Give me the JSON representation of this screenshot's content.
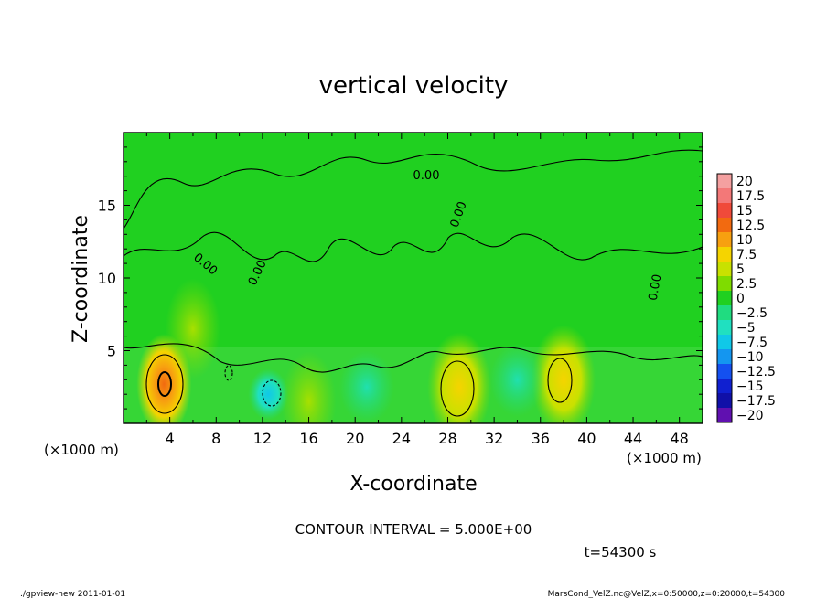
{
  "chart_data": {
    "type": "heatmap",
    "title": "vertical velocity",
    "xlabel": "X-coordinate",
    "ylabel": "Z-coordinate",
    "x_unit_left": "(×1000 m)",
    "x_unit_right": "(×1000 m)",
    "xlim": [
      0,
      50
    ],
    "ylim": [
      0,
      20
    ],
    "xticks": [
      4,
      8,
      12,
      16,
      20,
      24,
      28,
      32,
      36,
      40,
      44,
      48
    ],
    "yticks": [
      5,
      10,
      15
    ],
    "colorbar": {
      "levels": [
        20,
        17.5,
        15,
        12.5,
        10,
        7.5,
        5,
        2.5,
        0,
        -2.5,
        -5,
        -7.5,
        -10,
        -12.5,
        -15,
        -17.5,
        -20
      ],
      "level_labels": [
        "20",
        "17.5",
        "15",
        "12.5",
        "10",
        "7.5",
        "5",
        "2.5",
        "0",
        "−2.5",
        "−5",
        "−7.5",
        "−10",
        "−12.5",
        "−15",
        "−17.5",
        "−20"
      ],
      "colors": [
        "#f4a0a0",
        "#f37878",
        "#f04a3a",
        "#f26a10",
        "#f7a010",
        "#f5d400",
        "#c8e100",
        "#7fdc00",
        "#20d020",
        "#20dc80",
        "#20e0c0",
        "#10c8e8",
        "#1496f0",
        "#1450f0",
        "#1020d0",
        "#1010a8",
        "#6010b0"
      ]
    },
    "contour_labels": [
      "0.00",
      "0.00",
      "0.00",
      "0.00",
      "0.00"
    ],
    "features": [
      {
        "x": 3.5,
        "z": 2.7,
        "value": 12
      },
      {
        "x": 6.0,
        "z": 6.5,
        "value": 4
      },
      {
        "x": 16.0,
        "z": 1.5,
        "value": 6
      },
      {
        "x": 29.0,
        "z": 2.5,
        "value": 9
      },
      {
        "x": 38.0,
        "z": 3.0,
        "value": 8
      },
      {
        "x": 12.5,
        "z": 2.0,
        "value": -7
      },
      {
        "x": 21.0,
        "z": 2.5,
        "value": -3
      },
      {
        "x": 34.0,
        "z": 3.0,
        "value": -3
      }
    ]
  },
  "annotations": {
    "contour_interval": "CONTOUR INTERVAL = 5.000E+00",
    "time": "t=54300 s",
    "footer_left": "./gpview-new  2011-01-01",
    "footer_right": "MarsCond_VelZ.nc@VelZ,x=0:50000,z=0:20000,t=54300"
  }
}
